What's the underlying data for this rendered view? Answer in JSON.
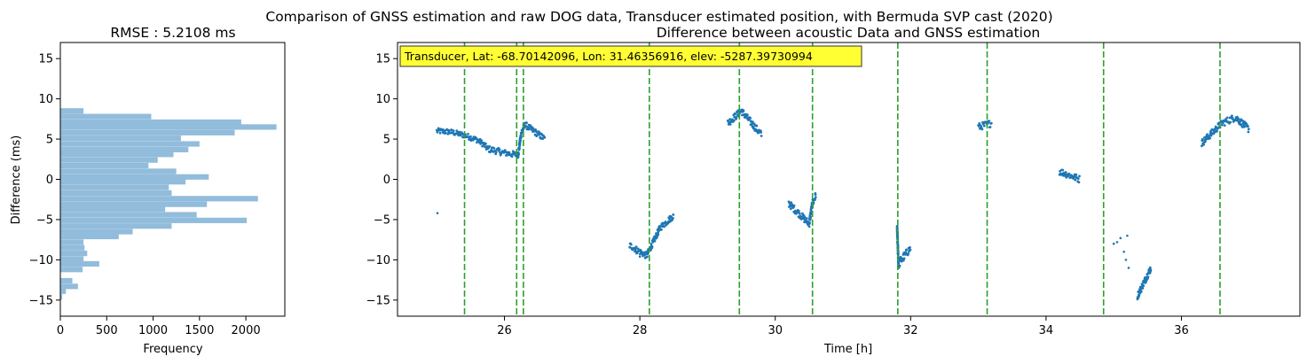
{
  "figure": {
    "suptitle": "Comparison of GNSS estimation and raw DOG data, Transducer estimated position, with Bermuda SVP cast (2020)"
  },
  "chart_data": [
    {
      "type": "bar",
      "orientation": "horizontal",
      "title": "RMSE : 5.2108 ms",
      "xlabel": "Frequency",
      "ylabel": "Difference (ms)",
      "xlim": [
        0,
        2420
      ],
      "ylim": [
        -17,
        17
      ],
      "xticks": [
        0,
        500,
        1000,
        1500,
        2000
      ],
      "yticks": [
        -15,
        -10,
        -5,
        0,
        5,
        10,
        15
      ],
      "grid": false,
      "color": "#92bcdb",
      "bin_width": 0.68,
      "bins": [
        {
          "y": 8.5,
          "value": 250
        },
        {
          "y": 7.8,
          "value": 980
        },
        {
          "y": 7.1,
          "value": 1950
        },
        {
          "y": 6.5,
          "value": 2330
        },
        {
          "y": 5.8,
          "value": 1880
        },
        {
          "y": 5.1,
          "value": 1300
        },
        {
          "y": 4.4,
          "value": 1500
        },
        {
          "y": 3.7,
          "value": 1380
        },
        {
          "y": 3.1,
          "value": 1220
        },
        {
          "y": 2.4,
          "value": 1050
        },
        {
          "y": 1.7,
          "value": 950
        },
        {
          "y": 1.0,
          "value": 1250
        },
        {
          "y": 0.3,
          "value": 1600
        },
        {
          "y": -0.3,
          "value": 1350
        },
        {
          "y": -1.0,
          "value": 1170
        },
        {
          "y": -1.7,
          "value": 1200
        },
        {
          "y": -2.4,
          "value": 2130
        },
        {
          "y": -3.1,
          "value": 1580
        },
        {
          "y": -3.7,
          "value": 1130
        },
        {
          "y": -4.4,
          "value": 1470
        },
        {
          "y": -5.1,
          "value": 2010
        },
        {
          "y": -5.8,
          "value": 1200
        },
        {
          "y": -6.5,
          "value": 780
        },
        {
          "y": -7.1,
          "value": 630
        },
        {
          "y": -7.8,
          "value": 250
        },
        {
          "y": -8.5,
          "value": 260
        },
        {
          "y": -9.2,
          "value": 290
        },
        {
          "y": -9.9,
          "value": 250
        },
        {
          "y": -10.5,
          "value": 420
        },
        {
          "y": -11.2,
          "value": 240
        },
        {
          "y": -11.9,
          "value": 0
        },
        {
          "y": -12.6,
          "value": 130
        },
        {
          "y": -13.3,
          "value": 190
        },
        {
          "y": -13.9,
          "value": 60
        },
        {
          "y": -14.6,
          "value": 20
        }
      ]
    },
    {
      "type": "scatter",
      "title": "Difference between acoustic Data and GNSS estimation",
      "xlabel": "Time [h]",
      "ylabel": "",
      "xlim": [
        24.42,
        37.75
      ],
      "ylim": [
        -17,
        17
      ],
      "xticks": [
        26,
        28,
        30,
        32,
        34,
        36
      ],
      "yticks": [
        -15,
        -10,
        -5,
        0,
        5,
        10,
        15
      ],
      "grid": false,
      "color": "#1f77b4",
      "annotation": {
        "text": "Transducer, Lat: -68.70142096, Lon: 31.46356916, elev: -5287.39730994",
        "placement": "top-left",
        "background": "#ffff33"
      },
      "vlines": {
        "color": "#2ca02c",
        "style": "dashed",
        "x": [
          25.41,
          26.18,
          26.28,
          28.14,
          29.47,
          30.55,
          31.81,
          33.13,
          34.85,
          36.57
        ]
      },
      "series_points": [
        {
          "x": 25.0,
          "y": 6.0,
          "spread": 0.35
        },
        {
          "x": 25.2,
          "y": 5.9,
          "spread": 0.35
        },
        {
          "x": 25.4,
          "y": 5.5,
          "spread": 0.35
        },
        {
          "x": 25.6,
          "y": 4.9,
          "spread": 0.35
        },
        {
          "x": 25.7,
          "y": 4.3,
          "spread": 0.35
        },
        {
          "x": 25.75,
          "y": 3.8,
          "spread": 0.4
        },
        {
          "x": 26.0,
          "y": 3.3,
          "spread": 0.4
        },
        {
          "x": 26.2,
          "y": 3.0,
          "spread": 0.4
        },
        {
          "x": 26.25,
          "y": 5.8,
          "spread": 0.4
        },
        {
          "x": 26.3,
          "y": 6.8,
          "spread": 0.4
        },
        {
          "x": 26.6,
          "y": 5.0,
          "spread": 0.4
        },
        {
          "x": 27.0,
          "y": -1.0,
          "spread": 0.45
        },
        {
          "x": 27.5,
          "y": -5.5,
          "spread": 0.45
        },
        {
          "x": 27.85,
          "y": -8.2,
          "spread": 0.4
        },
        {
          "x": 28.1,
          "y": -9.5,
          "spread": 0.4
        },
        {
          "x": 28.3,
          "y": -6.0,
          "spread": 0.4
        },
        {
          "x": 28.5,
          "y": -4.5,
          "spread": 0.4
        },
        {
          "x": 28.9,
          "y": 1.0,
          "spread": 0.4
        },
        {
          "x": 29.3,
          "y": 7.0,
          "spread": 0.45
        },
        {
          "x": 29.5,
          "y": 8.5,
          "spread": 0.45
        },
        {
          "x": 29.8,
          "y": 5.5,
          "spread": 0.45
        },
        {
          "x": 30.2,
          "y": -3.0,
          "spread": 0.45
        },
        {
          "x": 30.5,
          "y": -5.5,
          "spread": 0.45
        },
        {
          "x": 30.55,
          "y": -3.0,
          "spread": 0.5
        },
        {
          "x": 30.6,
          "y": -2.0,
          "spread": 0.5
        },
        {
          "x": 31.2,
          "y": -3.0,
          "spread": 0.5
        },
        {
          "x": 31.8,
          "y": -6.0,
          "spread": 0.5
        },
        {
          "x": 31.82,
          "y": -10.5,
          "spread": 0.6
        },
        {
          "x": 32.0,
          "y": -8.5,
          "spread": 0.45
        },
        {
          "x": 32.5,
          "y": -2.0,
          "spread": 0.45
        },
        {
          "x": 33.0,
          "y": 6.5,
          "spread": 0.45
        },
        {
          "x": 33.2,
          "y": 7.0,
          "spread": 0.45
        },
        {
          "x": 33.7,
          "y": 4.5,
          "spread": 0.45
        },
        {
          "x": 34.2,
          "y": 1.0,
          "spread": 0.45
        },
        {
          "x": 34.5,
          "y": 0.0,
          "spread": 0.45
        },
        {
          "x": 34.85,
          "y": 0.0,
          "spread": 0.45
        },
        {
          "x": 35.35,
          "y": -14.5,
          "spread": 0.45
        },
        {
          "x": 35.55,
          "y": -11.0,
          "spread": 0.45
        },
        {
          "x": 35.9,
          "y": -3.5,
          "spread": 0.45
        },
        {
          "x": 36.3,
          "y": 4.5,
          "spread": 0.45
        },
        {
          "x": 36.6,
          "y": 7.0,
          "spread": 0.45
        },
        {
          "x": 36.8,
          "y": 7.7,
          "spread": 0.45
        },
        {
          "x": 37.0,
          "y": 6.2,
          "spread": 0.45
        }
      ],
      "outliers": [
        {
          "x": 25.01,
          "y": -4.2
        },
        {
          "x": 27.95,
          "y": -9.2
        },
        {
          "x": 28.0,
          "y": -9.6
        },
        {
          "x": 28.25,
          "y": -6.8
        },
        {
          "x": 35.0,
          "y": -8.0
        },
        {
          "x": 35.1,
          "y": -7.3
        },
        {
          "x": 35.2,
          "y": -7.0
        },
        {
          "x": 35.15,
          "y": -9.0
        },
        {
          "x": 35.18,
          "y": -10.0
        },
        {
          "x": 35.22,
          "y": -11.0
        },
        {
          "x": 35.05,
          "y": -7.8
        }
      ]
    }
  ]
}
